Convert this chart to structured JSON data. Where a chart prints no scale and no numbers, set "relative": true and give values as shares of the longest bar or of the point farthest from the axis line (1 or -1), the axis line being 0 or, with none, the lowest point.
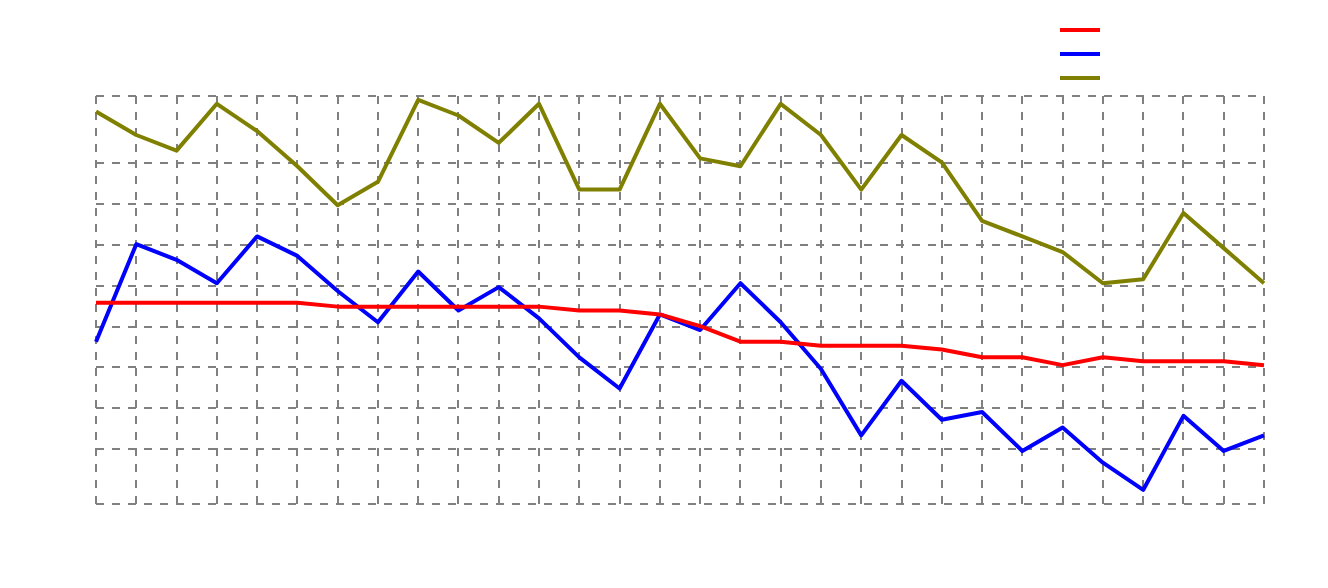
{
  "chart_data": {
    "type": "line",
    "relative": true,
    "grid": true,
    "line_style": "solid",
    "marker": "none",
    "categories": [
      null,
      null,
      null,
      null,
      null,
      null,
      null,
      null,
      null,
      null,
      null,
      null,
      null,
      null,
      null,
      null,
      null,
      null,
      null,
      null,
      null,
      null,
      null,
      null,
      null,
      null,
      null,
      null,
      null,
      null
    ],
    "series": [
      {
        "color": "#ff0000",
        "values": [
          0.48,
          0.48,
          0.48,
          0.48,
          0.48,
          0.48,
          0.47,
          0.47,
          0.47,
          0.47,
          0.47,
          0.47,
          0.46,
          0.46,
          0.45,
          0.42,
          0.38,
          0.38,
          0.37,
          0.37,
          0.37,
          0.36,
          0.34,
          0.34,
          0.32,
          0.34,
          0.33,
          0.33,
          0.33,
          0.32
        ]
      },
      {
        "color": "#0000ff",
        "values": [
          0.38,
          0.63,
          0.59,
          0.53,
          0.65,
          0.6,
          0.51,
          0.43,
          0.56,
          0.46,
          0.52,
          0.44,
          0.34,
          0.26,
          0.45,
          0.41,
          0.53,
          0.43,
          0.31,
          0.14,
          0.28,
          0.18,
          0.2,
          0.1,
          0.16,
          0.07,
          0,
          0.19,
          0.1,
          0.14
        ]
      },
      {
        "color": "#808000",
        "values": [
          0.97,
          0.91,
          0.87,
          0.99,
          0.92,
          0.83,
          0.73,
          0.79,
          1,
          0.96,
          0.89,
          0.99,
          0.77,
          0.77,
          0.99,
          0.85,
          0.83,
          0.99,
          0.91,
          0.77,
          0.91,
          0.84,
          0.69,
          0.65,
          0.61,
          0.53,
          0.54,
          0.71,
          0.62,
          0.53
        ]
      }
    ]
  }
}
